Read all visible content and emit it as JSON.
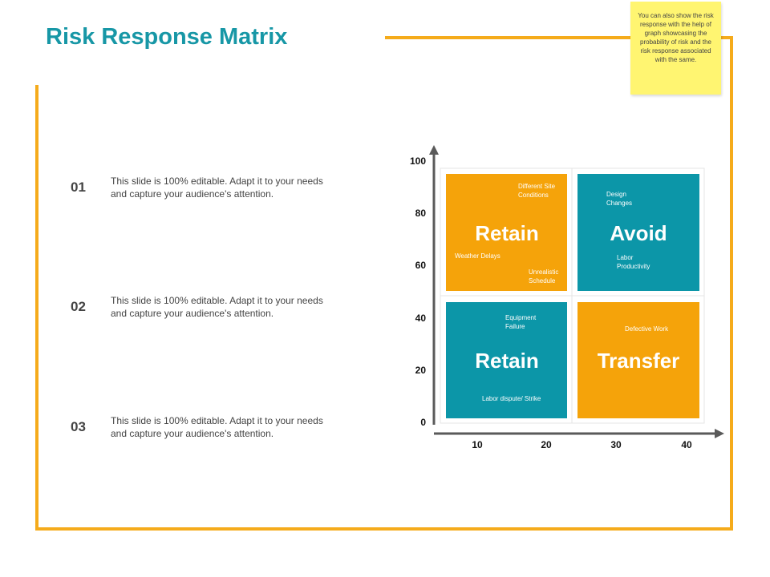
{
  "title": "Risk Response Matrix",
  "note": "You can also show the risk response with the help of graph showcasing the probability of risk and the risk response associated with the same.",
  "items": [
    {
      "num": "01",
      "text": "This slide is 100% editable. Adapt it to your needs and capture your audience's attention."
    },
    {
      "num": "02",
      "text": "This slide is 100% editable. Adapt it to your needs and capture your audience's attention."
    },
    {
      "num": "03",
      "text": "This slide is 100% editable. Adapt it to your needs and capture your audience's attention."
    }
  ],
  "matrix": {
    "y_ticks": [
      "100",
      "80",
      "60",
      "40",
      "20",
      "0"
    ],
    "x_ticks": [
      "10",
      "20",
      "30",
      "40"
    ],
    "colors": {
      "orange": "#f5a30a",
      "teal": "#0c96a8",
      "frame": "#f5ab1b",
      "title": "#1797a6"
    },
    "quadrants": [
      {
        "id": "top-left",
        "title": "Retain",
        "color": "orange",
        "labels": [
          [
            "Different Site",
            "Conditions"
          ],
          [
            "Weather Delays"
          ],
          [
            "Unrealistic",
            "Schedule"
          ]
        ]
      },
      {
        "id": "top-right",
        "title": "Avoid",
        "color": "teal",
        "labels": [
          [
            "Design",
            "Changes"
          ],
          [
            "Labor",
            "Productivity"
          ]
        ]
      },
      {
        "id": "bottom-left",
        "title": "Retain",
        "color": "teal",
        "labels": [
          [
            "Equipment",
            "Failure"
          ],
          [
            "Labor dispute/ Strike"
          ]
        ]
      },
      {
        "id": "bottom-right",
        "title": "Transfer",
        "color": "orange",
        "labels": [
          [
            "Defective Work"
          ]
        ]
      }
    ]
  }
}
